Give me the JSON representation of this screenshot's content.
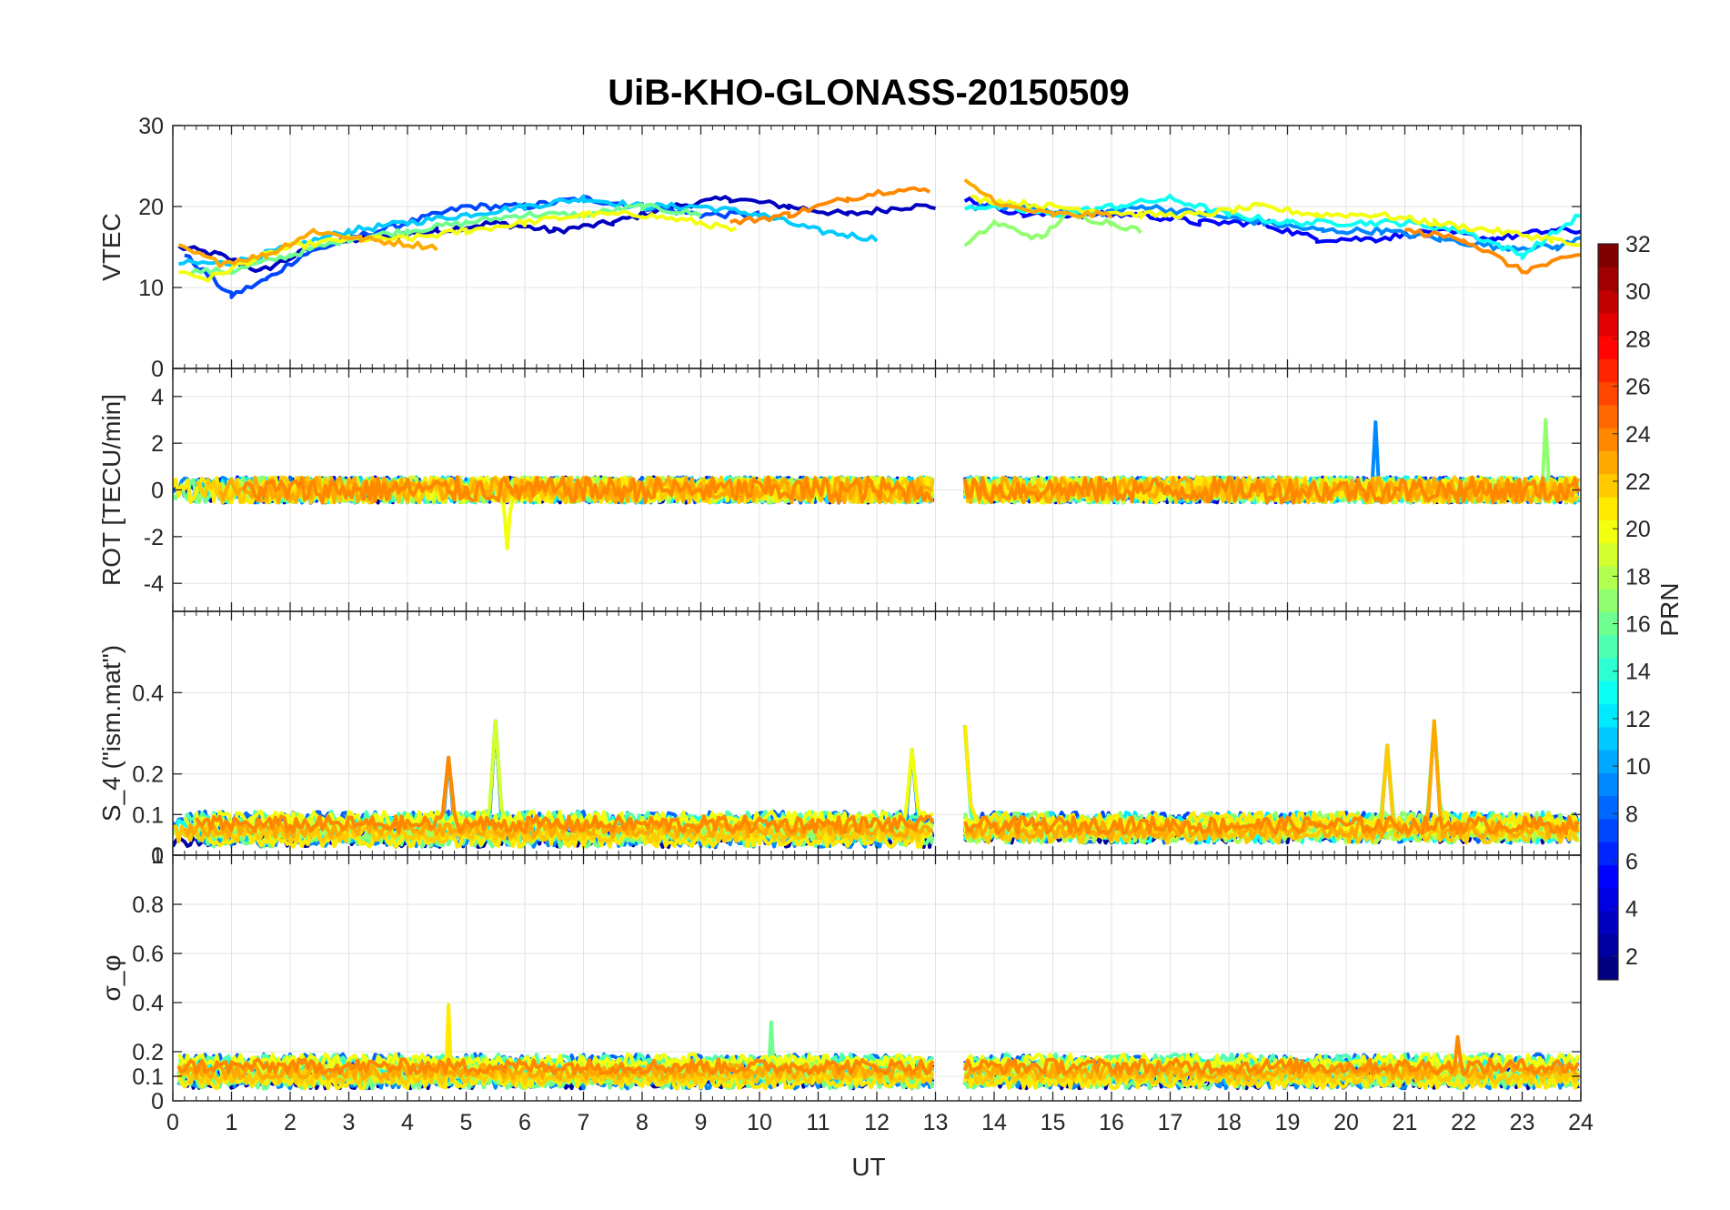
{
  "chart_data": [
    {
      "type": "line",
      "title": "UiB-KHO-GLONASS-20150509",
      "panel": "VTEC",
      "ylabel": "VTEC",
      "ylim": [
        0,
        30
      ],
      "yticks": [
        "0",
        "10",
        "20",
        "30"
      ],
      "xlim": [
        0,
        24
      ],
      "grid": true,
      "series_note_values": {
        "start_level": [
          11,
          16
        ],
        "dip_at_x1": 9,
        "plateau_6_to_13": [
          16,
          22
        ],
        "plateau_13_5_to_24": [
          12,
          23
        ]
      },
      "curves": [
        {
          "prn": 3,
          "x": [
            0.1,
            0.8,
            1.5,
            2.4,
            3.2,
            4.5,
            5.5,
            6.5,
            7.5,
            8.5,
            9.5,
            10.5,
            11.5,
            12.5,
            13.0
          ],
          "y": [
            15,
            14,
            12,
            15,
            16,
            17,
            18,
            17,
            18,
            20,
            21,
            20,
            19,
            20,
            20
          ]
        },
        {
          "prn": 7,
          "x": [
            0.2,
            1.0,
            1.6,
            2.2,
            3.0,
            4.0,
            5.0,
            6.0,
            7.0,
            8.0,
            9.0,
            10.0
          ],
          "y": [
            14,
            9,
            11,
            14,
            16,
            18,
            20,
            20,
            21,
            20,
            19,
            19
          ]
        },
        {
          "prn": 11,
          "x": [
            0.1,
            1.0,
            2.0,
            3.0,
            4.0,
            5.0,
            6.0,
            7.0,
            8.0,
            9.0,
            10.0,
            11.0,
            12.0
          ],
          "y": [
            13,
            13,
            15,
            17,
            18,
            19,
            20,
            21,
            20,
            20,
            19,
            17,
            16
          ]
        },
        {
          "prn": 16,
          "x": [
            0.3,
            1.0,
            2.0,
            3.0,
            4.0,
            5.0,
            6.0,
            7.0,
            8.0,
            9.0
          ],
          "y": [
            12,
            12,
            14,
            16,
            17,
            18,
            19,
            19,
            20,
            19
          ]
        },
        {
          "prn": 20,
          "x": [
            0.1,
            0.6,
            1.2,
            2.0,
            3.0,
            4.0,
            5.0,
            6.0,
            7.0,
            8.0,
            9.0,
            9.6
          ],
          "y": [
            12,
            11,
            13,
            15,
            16,
            16,
            17,
            18,
            19,
            19,
            18,
            17
          ]
        },
        {
          "prn": 23,
          "x": [
            0.1,
            0.8,
            1.6,
            2.4,
            3.2,
            4.5
          ],
          "y": [
            15,
            13,
            14,
            17,
            16,
            15
          ]
        },
        {
          "prn": 24,
          "x": [
            9.5,
            10.5,
            11.5,
            12.2,
            12.9
          ],
          "y": [
            18,
            19,
            21,
            22,
            22
          ]
        },
        {
          "prn": 5,
          "x": [
            13.5,
            14.5,
            15.5,
            16.5,
            17.5,
            18.5,
            19.5,
            20.5,
            21.5,
            22.5,
            23.5,
            24.0
          ],
          "y": [
            21,
            19,
            19,
            19,
            18,
            18,
            16,
            16,
            17,
            16,
            17,
            17
          ]
        },
        {
          "prn": 9,
          "x": [
            13.6,
            14.6,
            15.6,
            16.6,
            17.6,
            18.6,
            19.6,
            20.6,
            21.6,
            22.6,
            23.6,
            24.0
          ],
          "y": [
            20,
            20,
            19,
            20,
            19,
            18,
            17,
            17,
            16,
            15,
            15,
            16
          ]
        },
        {
          "prn": 13,
          "x": [
            13.5,
            14.0,
            15.0,
            16.0,
            17.0,
            18.0,
            19.0,
            20.0,
            21.0,
            22.0,
            23.0,
            24.0
          ],
          "y": [
            20,
            20,
            19,
            20,
            21,
            19,
            18,
            18,
            18,
            17,
            14,
            19
          ]
        },
        {
          "prn": 17,
          "x": [
            13.5,
            14.0,
            14.8,
            15.2,
            16.0,
            16.5
          ],
          "y": [
            15,
            18,
            16,
            19,
            18,
            17
          ]
        },
        {
          "prn": 20,
          "x": [
            13.6,
            15.0,
            16.5,
            17.5,
            18.5,
            19.5,
            20.5,
            21.5,
            22.5,
            23.5,
            24.0
          ],
          "y": [
            21,
            20,
            19,
            19,
            20,
            19,
            19,
            18,
            17,
            16,
            15
          ]
        },
        {
          "prn": 23,
          "x": [
            13.5,
            14.2,
            15.0,
            16.0
          ],
          "y": [
            23,
            20,
            19,
            19
          ]
        },
        {
          "prn": 24,
          "x": [
            21.0,
            22.0,
            23.0,
            24.0
          ],
          "y": [
            17,
            16,
            12,
            14
          ]
        }
      ]
    },
    {
      "type": "line",
      "panel": "ROT",
      "ylabel": "ROT [TECU/min]",
      "ylim": [
        -5.2,
        5.2
      ],
      "yticks": [
        "-4",
        "-2",
        "0",
        "2",
        "4"
      ],
      "xlim": [
        0,
        24
      ],
      "grid": true,
      "notable_values": {
        "typical_range": [
          -1,
          1
        ],
        "spike_x5_7": -2.5,
        "spike_x20_5": 2.9,
        "spike_x23_4": 3.0
      }
    },
    {
      "type": "line",
      "panel": "S4",
      "ylabel": "S_4 (\"ism.mat\")",
      "ylim": [
        0,
        0.6
      ],
      "yticks": [
        "0",
        "0.1",
        "0.2",
        "0.4"
      ],
      "xlim": [
        0,
        24
      ],
      "grid": true,
      "notable_values": {
        "baseline": [
          0.03,
          0.1
        ],
        "peaks": [
          [
            4.7,
            0.24
          ],
          [
            5.5,
            0.33
          ],
          [
            12.6,
            0.26
          ],
          [
            13.5,
            0.32
          ],
          [
            20.7,
            0.27
          ],
          [
            21.5,
            0.33
          ]
        ]
      }
    },
    {
      "type": "line",
      "panel": "sigma_phi",
      "ylabel": "σ_φ",
      "ylim": [
        0,
        1
      ],
      "yticks": [
        "0",
        "0.1",
        "0.2",
        "0.4",
        "0.6",
        "0.8",
        "1"
      ],
      "xlabel": "UT",
      "xticks": [
        "0",
        "1",
        "2",
        "3",
        "4",
        "5",
        "6",
        "7",
        "8",
        "9",
        "10",
        "11",
        "12",
        "13",
        "14",
        "15",
        "16",
        "17",
        "18",
        "19",
        "20",
        "21",
        "22",
        "23",
        "24"
      ],
      "xlim": [
        0,
        24
      ],
      "grid": true,
      "notable_values": {
        "baseline": [
          0.05,
          0.2
        ],
        "peaks": [
          [
            4.7,
            0.39
          ],
          [
            10.2,
            0.32
          ],
          [
            21.9,
            0.26
          ]
        ]
      }
    }
  ],
  "colorbar": {
    "label": "PRN",
    "ticks": [
      "2",
      "4",
      "6",
      "8",
      "10",
      "12",
      "14",
      "16",
      "18",
      "20",
      "22",
      "24",
      "26",
      "28",
      "30",
      "32"
    ],
    "range": [
      1,
      32
    ],
    "colormap": "jet"
  }
}
